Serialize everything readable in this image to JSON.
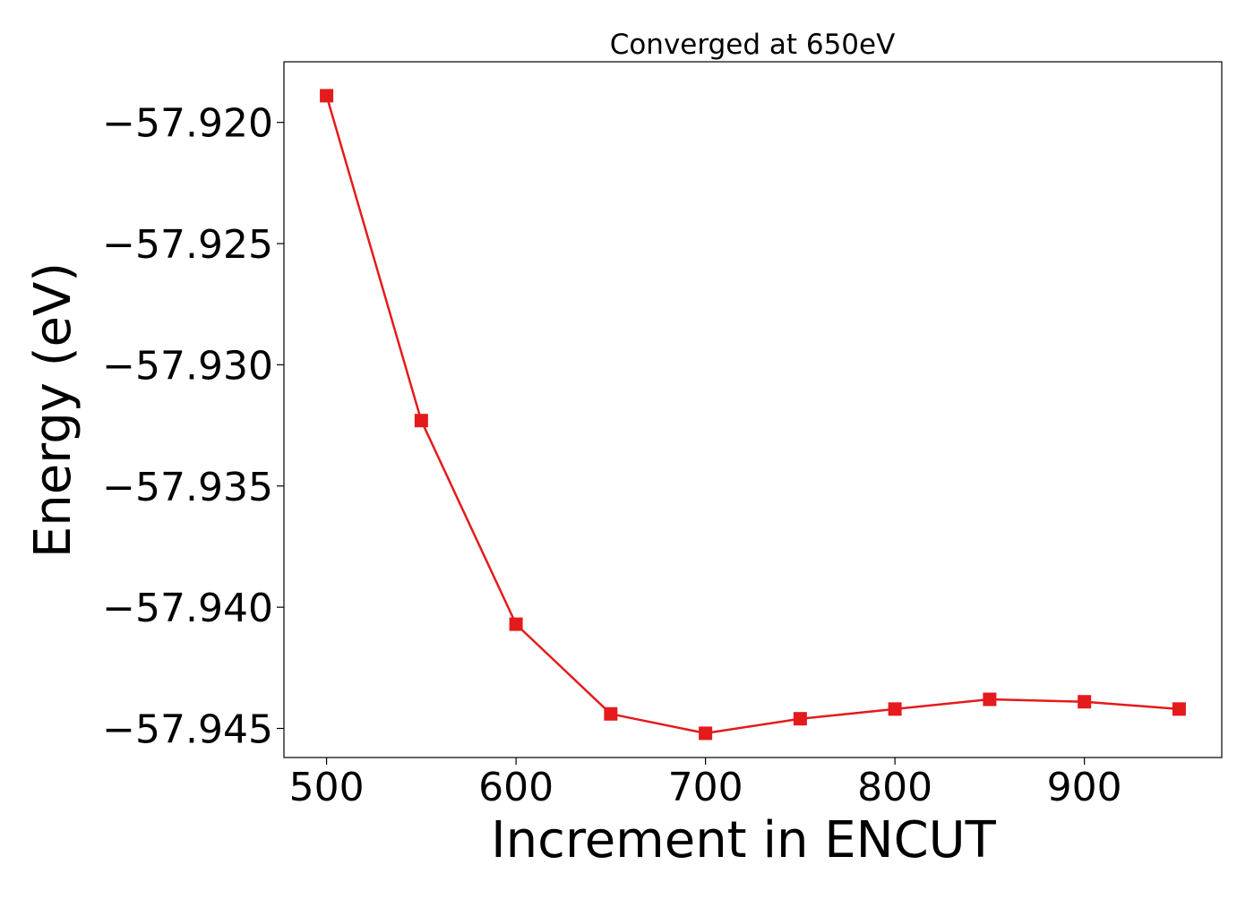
{
  "chart_data": {
    "type": "line",
    "title": "Converged at 650eV",
    "xlabel": "Increment in ENCUT",
    "ylabel": "Energy (eV)",
    "xlim": [
      477.5,
      972.5
    ],
    "ylim": [
      -57.9462,
      -57.9175
    ],
    "x_ticks": [
      500,
      600,
      700,
      800,
      900
    ],
    "x_tick_labels": [
      "500",
      "600",
      "700",
      "800",
      "900"
    ],
    "y_ticks": [
      -57.92,
      -57.925,
      -57.93,
      -57.935,
      -57.94,
      -57.945
    ],
    "y_tick_labels": [
      "−57.920",
      "−57.925",
      "−57.930",
      "−57.935",
      "−57.940",
      "−57.945"
    ],
    "grid": false,
    "series": [
      {
        "x": [
          500,
          550,
          600,
          650,
          700,
          750,
          800,
          850,
          900,
          950
        ],
        "y": [
          -57.9189,
          -57.9323,
          -57.9407,
          -57.9444,
          -57.9452,
          -57.9446,
          -57.9442,
          -57.9438,
          -57.9439,
          -57.9442
        ],
        "color": "#e41a1c",
        "marker": "square"
      }
    ]
  }
}
